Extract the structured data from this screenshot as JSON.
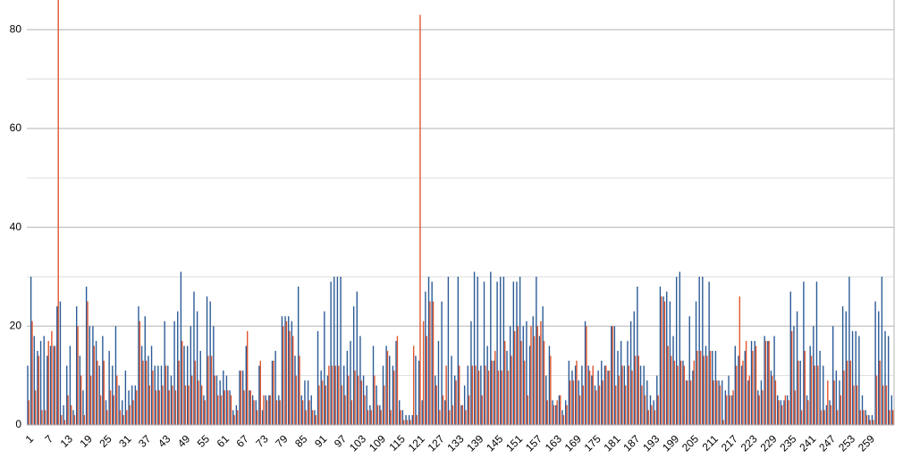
{
  "chart_data": {
    "type": "bar",
    "categories": [
      "1",
      null,
      null,
      null,
      null,
      null,
      "7",
      null,
      null,
      null,
      null,
      null,
      "13",
      null,
      null,
      null,
      null,
      null,
      "19",
      null,
      null,
      null,
      null,
      null,
      "25",
      null,
      null,
      null,
      null,
      null,
      "31",
      null,
      null,
      null,
      null,
      null,
      "37",
      null,
      null,
      null,
      null,
      null,
      "43",
      null,
      null,
      null,
      null,
      null,
      "49",
      null,
      null,
      null,
      null,
      null,
      "55",
      null,
      null,
      null,
      null,
      null,
      "61",
      null,
      null,
      null,
      null,
      null,
      "67",
      null,
      null,
      null,
      null,
      null,
      "73",
      null,
      null,
      null,
      null,
      null,
      "79",
      null,
      null,
      null,
      null,
      null,
      "85",
      null,
      null,
      null,
      null,
      null,
      "91",
      null,
      null,
      null,
      null,
      null,
      "97",
      null,
      null,
      null,
      null,
      null,
      "103",
      null,
      null,
      null,
      null,
      null,
      "109",
      null,
      null,
      null,
      null,
      null,
      "115",
      null,
      null,
      null,
      null,
      null,
      "121",
      null,
      null,
      null,
      null,
      null,
      "127",
      null,
      null,
      null,
      null,
      null,
      "133",
      null,
      null,
      null,
      null,
      null,
      "139",
      null,
      null,
      null,
      null,
      null,
      "145",
      null,
      null,
      null,
      null,
      null,
      "151",
      null,
      null,
      null,
      null,
      null,
      "157",
      null,
      null,
      null,
      null,
      null,
      "163",
      null,
      null,
      null,
      null,
      null,
      "169",
      null,
      null,
      null,
      null,
      null,
      "175",
      null,
      null,
      null,
      null,
      null,
      "181",
      null,
      null,
      null,
      null,
      null,
      "187",
      null,
      null,
      null,
      null,
      null,
      "193",
      null,
      null,
      null,
      null,
      null,
      "199",
      null,
      null,
      null,
      null,
      null,
      "205",
      null,
      null,
      null,
      null,
      null,
      "211",
      null,
      null,
      null,
      null,
      null,
      "217",
      null,
      null,
      null,
      null,
      null,
      "223",
      null,
      null,
      null,
      null,
      null,
      "229",
      null,
      null,
      null,
      null,
      null,
      "235",
      null,
      null,
      null,
      null,
      null,
      "241",
      null,
      null,
      null,
      null,
      null,
      "247",
      null,
      null,
      null,
      null,
      null,
      "253",
      null,
      null,
      null,
      null,
      null,
      "259",
      null,
      null,
      null,
      null,
      null,
      null,
      null
    ],
    "series": [
      {
        "color": "#2a5a96",
        "values": [
          12,
          30,
          18,
          15,
          17,
          18,
          14,
          16,
          16,
          24,
          25,
          4,
          12,
          16,
          3,
          24,
          14,
          7,
          28,
          20,
          20,
          17,
          12,
          18,
          5,
          15,
          12,
          20,
          8,
          5,
          11,
          7,
          8,
          8,
          24,
          16,
          22,
          14,
          16,
          12,
          12,
          12,
          21,
          12,
          10,
          21,
          23,
          31,
          16,
          16,
          20,
          27,
          23,
          15,
          6,
          26,
          25,
          20,
          10,
          9,
          11,
          10,
          7,
          3,
          4,
          11,
          11,
          16,
          7,
          6,
          5,
          12,
          3,
          6,
          6,
          13,
          15,
          6,
          22,
          22,
          22,
          21,
          14,
          28,
          6,
          9,
          9,
          6,
          3,
          19,
          11,
          23,
          10,
          29,
          30,
          30,
          30,
          12,
          15,
          17,
          24,
          27,
          18,
          10,
          8,
          4,
          16,
          8,
          4,
          12,
          16,
          14,
          12,
          17,
          5,
          3,
          2,
          2,
          2,
          14,
          13,
          5,
          27,
          30,
          29,
          10,
          17,
          25,
          5,
          30,
          14,
          10,
          30,
          4,
          8,
          12,
          21,
          31,
          30,
          12,
          29,
          16,
          31,
          13,
          29,
          30,
          30,
          15,
          20,
          29,
          29,
          30,
          20,
          21,
          16,
          22,
          30,
          18,
          24,
          10,
          16,
          5,
          4,
          6,
          3,
          5,
          13,
          11,
          12,
          9,
          12,
          21,
          12,
          10,
          8,
          11,
          13,
          12,
          11,
          20,
          20,
          15,
          17,
          12,
          17,
          21,
          23,
          28,
          12,
          12,
          9,
          6,
          5,
          10,
          28,
          26,
          27,
          25,
          18,
          30,
          31,
          13,
          9,
          22,
          11,
          25,
          30,
          30,
          16,
          29,
          15,
          15,
          9,
          9,
          7,
          10,
          6,
          16,
          14,
          12,
          15,
          9,
          17,
          17,
          7,
          9,
          18,
          17,
          11,
          18,
          6,
          5,
          5,
          6,
          27,
          20,
          23,
          13,
          29,
          6,
          16,
          20,
          29,
          15,
          12,
          4,
          5,
          20,
          11,
          9,
          24,
          23,
          30,
          19,
          19,
          18,
          6,
          3,
          2,
          2,
          25,
          23,
          30,
          19,
          18,
          6
        ]
      },
      {
        "color": "#e0552d",
        "values": [
          5,
          21,
          7,
          14,
          3,
          3,
          17,
          19,
          16,
          86,
          2,
          1,
          6,
          4,
          2,
          20,
          10,
          2,
          25,
          10,
          16,
          13,
          6,
          13,
          3,
          7,
          6,
          10,
          3,
          2,
          3,
          4,
          5,
          7,
          21,
          13,
          13,
          8,
          11,
          7,
          7,
          8,
          12,
          7,
          8,
          7,
          13,
          17,
          8,
          8,
          10,
          13,
          9,
          8,
          5,
          14,
          14,
          10,
          6,
          6,
          7,
          7,
          6,
          2,
          3,
          11,
          7,
          19,
          7,
          5,
          3,
          13,
          6,
          5,
          6,
          13,
          5,
          5,
          20,
          21,
          19,
          18,
          10,
          14,
          5,
          3,
          5,
          3,
          2,
          8,
          9,
          8,
          12,
          12,
          12,
          12,
          8,
          6,
          10,
          5,
          11,
          10,
          9,
          6,
          3,
          3,
          10,
          4,
          3,
          8,
          15,
          3,
          11,
          18,
          3,
          1,
          1,
          1,
          16,
          2,
          83,
          21,
          18,
          25,
          25,
          8,
          3,
          6,
          12,
          3,
          4,
          9,
          12,
          4,
          3,
          6,
          12,
          12,
          11,
          6,
          12,
          11,
          13,
          15,
          11,
          11,
          17,
          11,
          14,
          19,
          20,
          17,
          13,
          6,
          20,
          18,
          20,
          21,
          17,
          5,
          14,
          4,
          5,
          6,
          2,
          4,
          9,
          9,
          13,
          6,
          8,
          20,
          11,
          12,
          7,
          8,
          9,
          12,
          11,
          20,
          8,
          10,
          12,
          8,
          12,
          11,
          14,
          14,
          8,
          6,
          3,
          4,
          3,
          6,
          26,
          25,
          16,
          14,
          13,
          12,
          13,
          12,
          9,
          9,
          13,
          15,
          15,
          14,
          14,
          15,
          9,
          9,
          8,
          1,
          6,
          6,
          7,
          12,
          26,
          13,
          17,
          10,
          15,
          16,
          6,
          7,
          17,
          17,
          10,
          9,
          5,
          4,
          6,
          5,
          19,
          7,
          13,
          3,
          15,
          5,
          14,
          12,
          12,
          3,
          3,
          9,
          4,
          9,
          3,
          6,
          11,
          13,
          13,
          8,
          8,
          3,
          3,
          2,
          1,
          1,
          10,
          13,
          8,
          8,
          3,
          3
        ]
      }
    ],
    "ylim": [
      0,
      86
    ],
    "yticks": [
      0,
      20,
      40,
      60,
      80
    ],
    "minor_yticks": [
      10,
      30,
      50,
      70
    ],
    "grid": true
  }
}
